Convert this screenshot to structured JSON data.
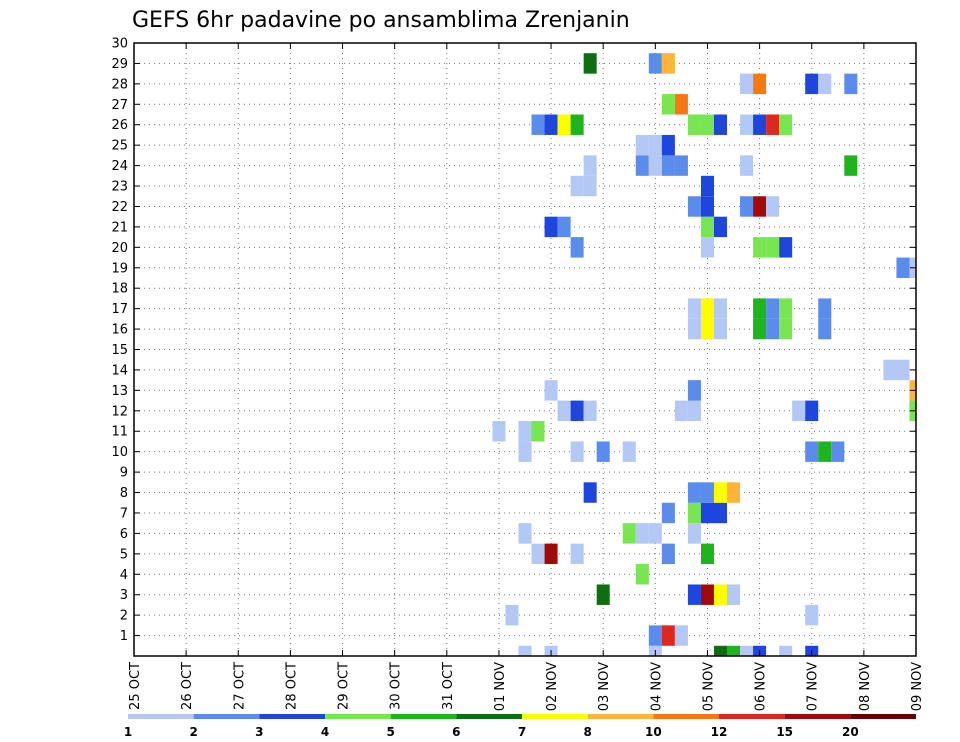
{
  "chart_data": {
    "type": "heatmap",
    "title": "GEFS 6hr padavine po ansamblima Zrenjanin",
    "y_ticks": [
      "1",
      "2",
      "3",
      "4",
      "5",
      "6",
      "7",
      "8",
      "9",
      "10",
      "11",
      "12",
      "13",
      "14",
      "15",
      "16",
      "17",
      "18",
      "19",
      "20",
      "21",
      "22",
      "23",
      "24",
      "25",
      "26",
      "27",
      "28",
      "29",
      "30"
    ],
    "x_ticks": [
      "25 OCT",
      "26 OCT",
      "27 OCT",
      "28 OCT",
      "29 OCT",
      "30 OCT",
      "31 OCT",
      "01 NOV",
      "02 NOV",
      "03 NOV",
      "04 NOV",
      "05 NOV",
      "06 NOV",
      "07 NOV",
      "08 NOV",
      "09 NOV"
    ],
    "y_range": [
      0,
      30
    ],
    "x_range_days": [
      0,
      15
    ],
    "time_step_hours": 6,
    "grid": "dotted",
    "colorbar": {
      "labels": [
        "1",
        "2",
        "3",
        "4",
        "5",
        "6",
        "7",
        "8",
        "10",
        "12",
        "15",
        "20"
      ],
      "colors": [
        "#b4c8f5",
        "#5a8ceb",
        "#1e46dc",
        "#78e650",
        "#1eb41e",
        "#0f6e0f",
        "#ffff00",
        "#ffb43c",
        "#f57814",
        "#dc281e",
        "#a00a0a",
        "#640000"
      ]
    },
    "cells": [
      {
        "day": 7.5,
        "member": 0,
        "level": 1
      },
      {
        "day": 8,
        "member": 0,
        "level": 1
      },
      {
        "day": 10,
        "member": 0,
        "level": 1
      },
      {
        "day": 11.25,
        "member": 0,
        "level": 6
      },
      {
        "day": 11.5,
        "member": 0,
        "level": 5
      },
      {
        "day": 11.75,
        "member": 0,
        "level": 1
      },
      {
        "day": 12,
        "member": 0,
        "level": 3
      },
      {
        "day": 12.5,
        "member": 0,
        "level": 1
      },
      {
        "day": 13,
        "member": 0,
        "level": 3
      },
      {
        "day": 10,
        "member": 1,
        "level": 2
      },
      {
        "day": 10.25,
        "member": 1,
        "level": 10
      },
      {
        "day": 10.5,
        "member": 1,
        "level": 1
      },
      {
        "day": 7.25,
        "member": 2,
        "level": 1
      },
      {
        "day": 13,
        "member": 2,
        "level": 1
      },
      {
        "day": 9,
        "member": 3,
        "level": 6
      },
      {
        "day": 10.75,
        "member": 3,
        "level": 3
      },
      {
        "day": 11,
        "member": 3,
        "level": 11
      },
      {
        "day": 11.25,
        "member": 3,
        "level": 7
      },
      {
        "day": 11.5,
        "member": 3,
        "level": 1
      },
      {
        "day": 9.75,
        "member": 4,
        "level": 4
      },
      {
        "day": 7.75,
        "member": 5,
        "level": 1
      },
      {
        "day": 8,
        "member": 5,
        "level": 11
      },
      {
        "day": 8.5,
        "member": 5,
        "level": 1
      },
      {
        "day": 10.25,
        "member": 5,
        "level": 2
      },
      {
        "day": 11,
        "member": 5,
        "level": 5
      },
      {
        "day": 7.5,
        "member": 6,
        "level": 1
      },
      {
        "day": 9.5,
        "member": 6,
        "level": 4
      },
      {
        "day": 9.75,
        "member": 6,
        "level": 1
      },
      {
        "day": 10,
        "member": 6,
        "level": 1
      },
      {
        "day": 10.75,
        "member": 6,
        "level": 1
      },
      {
        "day": 10.25,
        "member": 7,
        "level": 2
      },
      {
        "day": 10.75,
        "member": 7,
        "level": 4
      },
      {
        "day": 11,
        "member": 7,
        "level": 3
      },
      {
        "day": 11.25,
        "member": 7,
        "level": 3
      },
      {
        "day": 8.75,
        "member": 8,
        "level": 3
      },
      {
        "day": 10.75,
        "member": 8,
        "level": 2
      },
      {
        "day": 11,
        "member": 8,
        "level": 2
      },
      {
        "day": 11.25,
        "member": 8,
        "level": 7
      },
      {
        "day": 11.5,
        "member": 8,
        "level": 8
      },
      {
        "day": 7.5,
        "member": 10,
        "level": 1
      },
      {
        "day": 8.5,
        "member": 10,
        "level": 1
      },
      {
        "day": 9,
        "member": 10,
        "level": 2
      },
      {
        "day": 9.5,
        "member": 10,
        "level": 1
      },
      {
        "day": 13,
        "member": 10,
        "level": 2
      },
      {
        "day": 13.25,
        "member": 10,
        "level": 5
      },
      {
        "day": 13.5,
        "member": 10,
        "level": 2
      },
      {
        "day": 7,
        "member": 11,
        "level": 1
      },
      {
        "day": 7.5,
        "member": 11,
        "level": 1
      },
      {
        "day": 7.75,
        "member": 11,
        "level": 4
      },
      {
        "day": 8.25,
        "member": 12,
        "level": 1
      },
      {
        "day": 8.5,
        "member": 12,
        "level": 3
      },
      {
        "day": 8.75,
        "member": 12,
        "level": 1
      },
      {
        "day": 10.5,
        "member": 12,
        "level": 1
      },
      {
        "day": 10.75,
        "member": 12,
        "level": 1
      },
      {
        "day": 12.75,
        "member": 12,
        "level": 1
      },
      {
        "day": 13,
        "member": 12,
        "level": 3
      },
      {
        "day": 15,
        "member": 12,
        "level": 4
      },
      {
        "day": 8,
        "member": 13,
        "level": 1
      },
      {
        "day": 10.75,
        "member": 13,
        "level": 2
      },
      {
        "day": 15,
        "member": 13,
        "level": 8
      },
      {
        "day": 14.5,
        "member": 14,
        "level": 1
      },
      {
        "day": 14.75,
        "member": 14,
        "level": 1
      },
      {
        "day": 10.75,
        "member": 16,
        "level": 1
      },
      {
        "day": 11,
        "member": 16,
        "level": 7
      },
      {
        "day": 11.25,
        "member": 16,
        "level": 1
      },
      {
        "day": 12,
        "member": 16,
        "level": 5
      },
      {
        "day": 12.25,
        "member": 16,
        "level": 2
      },
      {
        "day": 12.5,
        "member": 16,
        "level": 4
      },
      {
        "day": 13.25,
        "member": 16,
        "level": 2
      },
      {
        "day": 10.75,
        "member": 17,
        "level": 1
      },
      {
        "day": 11,
        "member": 17,
        "level": 7
      },
      {
        "day": 11.25,
        "member": 17,
        "level": 1
      },
      {
        "day": 12,
        "member": 17,
        "level": 5
      },
      {
        "day": 12.25,
        "member": 17,
        "level": 2
      },
      {
        "day": 12.5,
        "member": 17,
        "level": 4
      },
      {
        "day": 13.25,
        "member": 17,
        "level": 2
      },
      {
        "day": 14.75,
        "member": 19,
        "level": 2
      },
      {
        "day": 15,
        "member": 19,
        "level": 1
      },
      {
        "day": 8.5,
        "member": 20,
        "level": 2
      },
      {
        "day": 11,
        "member": 20,
        "level": 1
      },
      {
        "day": 12,
        "member": 20,
        "level": 4
      },
      {
        "day": 12.25,
        "member": 20,
        "level": 4
      },
      {
        "day": 12.5,
        "member": 20,
        "level": 3
      },
      {
        "day": 8,
        "member": 21,
        "level": 3
      },
      {
        "day": 8.25,
        "member": 21,
        "level": 2
      },
      {
        "day": 11,
        "member": 21,
        "level": 4
      },
      {
        "day": 11.25,
        "member": 21,
        "level": 3
      },
      {
        "day": 10.75,
        "member": 22,
        "level": 2
      },
      {
        "day": 11,
        "member": 22,
        "level": 3
      },
      {
        "day": 11.75,
        "member": 22,
        "level": 2
      },
      {
        "day": 12,
        "member": 22,
        "level": 11
      },
      {
        "day": 12.25,
        "member": 22,
        "level": 1
      },
      {
        "day": 8.5,
        "member": 23,
        "level": 1
      },
      {
        "day": 8.75,
        "member": 23,
        "level": 1
      },
      {
        "day": 11,
        "member": 23,
        "level": 3
      },
      {
        "day": 8.75,
        "member": 24,
        "level": 1
      },
      {
        "day": 9.75,
        "member": 24,
        "level": 2
      },
      {
        "day": 10,
        "member": 24,
        "level": 1
      },
      {
        "day": 10.25,
        "member": 24,
        "level": 2
      },
      {
        "day": 10.5,
        "member": 24,
        "level": 2
      },
      {
        "day": 11.75,
        "member": 24,
        "level": 1
      },
      {
        "day": 13.75,
        "member": 24,
        "level": 5
      },
      {
        "day": 9.75,
        "member": 25,
        "level": 1
      },
      {
        "day": 10,
        "member": 25,
        "level": 1
      },
      {
        "day": 10.25,
        "member": 25,
        "level": 3
      },
      {
        "day": 7.75,
        "member": 26,
        "level": 2
      },
      {
        "day": 8,
        "member": 26,
        "level": 3
      },
      {
        "day": 8.25,
        "member": 26,
        "level": 7
      },
      {
        "day": 8.5,
        "member": 26,
        "level": 5
      },
      {
        "day": 10.75,
        "member": 26,
        "level": 4
      },
      {
        "day": 11,
        "member": 26,
        "level": 4
      },
      {
        "day": 11.25,
        "member": 26,
        "level": 3
      },
      {
        "day": 11.75,
        "member": 26,
        "level": 1
      },
      {
        "day": 12,
        "member": 26,
        "level": 3
      },
      {
        "day": 12.25,
        "member": 26,
        "level": 10
      },
      {
        "day": 12.5,
        "member": 26,
        "level": 4
      },
      {
        "day": 10.25,
        "member": 27,
        "level": 4
      },
      {
        "day": 10.5,
        "member": 27,
        "level": 9
      },
      {
        "day": 11.75,
        "member": 28,
        "level": 1
      },
      {
        "day": 12,
        "member": 28,
        "level": 9
      },
      {
        "day": 13,
        "member": 28,
        "level": 3
      },
      {
        "day": 13.25,
        "member": 28,
        "level": 1
      },
      {
        "day": 13.75,
        "member": 28,
        "level": 2
      },
      {
        "day": 8.75,
        "member": 29,
        "level": 6
      },
      {
        "day": 10,
        "member": 29,
        "level": 2
      },
      {
        "day": 10.25,
        "member": 29,
        "level": 8
      }
    ]
  }
}
